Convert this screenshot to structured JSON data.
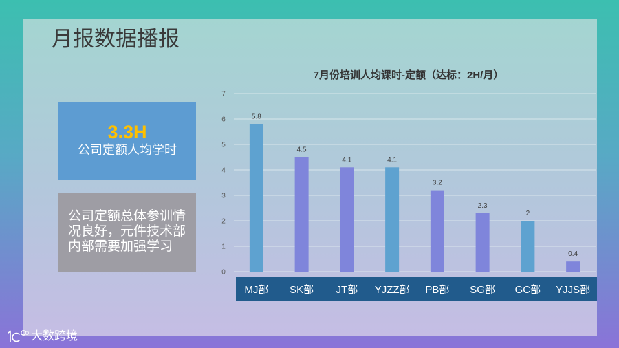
{
  "slide": {
    "title": "月报数据播报"
  },
  "kpi": {
    "value": "3.3H",
    "label": "公司定额人均学时"
  },
  "note": {
    "text": "公司定额总体参训情况良好，元件技术部内部需要加强学习"
  },
  "logo": {
    "icon": "brand-logo-icon",
    "text": "大数跨境"
  },
  "colors": {
    "kpi_box": "#5d9cd2",
    "kpi_value": "#ffc000",
    "note_box": "#9e9da4",
    "category_band": "#215b8c",
    "bar_blue": "#5ea2d0",
    "bar_purple": "#7f85db"
  },
  "chart_data": {
    "type": "bar",
    "title": "7月份培训人均课时-定额（达标：2H/月）",
    "categories": [
      "MJ部",
      "SK部",
      "JT部",
      "YJZZ部",
      "PB部",
      "SG部",
      "GC部",
      "YJJS部"
    ],
    "values": [
      5.8,
      4.5,
      4.1,
      4.1,
      3.2,
      2.3,
      2,
      0.4
    ],
    "bar_colors": [
      "#5ea2d0",
      "#7f85db",
      "#7f85db",
      "#5ea2d0",
      "#7f85db",
      "#7f85db",
      "#5ea2d0",
      "#7f85db"
    ],
    "ylim": [
      0,
      7
    ],
    "yticks": [
      0,
      1,
      2,
      3,
      4,
      5,
      6,
      7
    ],
    "grid": true,
    "legend": "none",
    "data_labels": true
  }
}
